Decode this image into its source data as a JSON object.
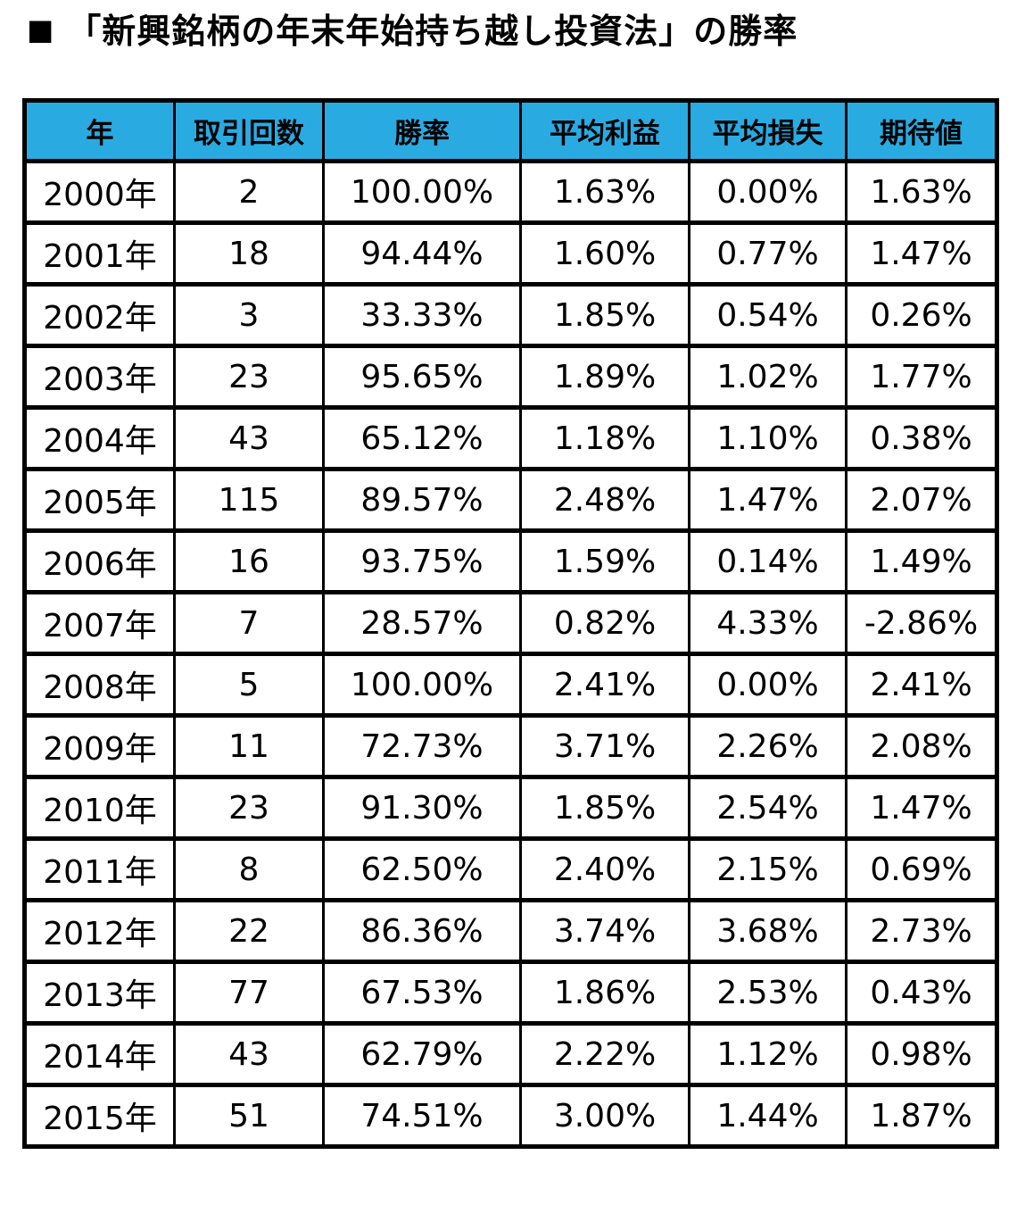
{
  "page": {
    "title_marker": "■",
    "title_text": "「新興銘柄の年末年始持ち越し投資法」の勝率"
  },
  "colors": {
    "header_bg": "#29ABE2",
    "border": "#000000",
    "text": "#000000",
    "background": "#FFFFFF"
  },
  "chart_data": {
    "type": "table",
    "title": "「新興銘柄の年末年始持ち越し投資法」の勝率",
    "columns": [
      "年",
      "取引回数",
      "勝率",
      "平均利益",
      "平均損失",
      "期待値"
    ],
    "rows": [
      [
        "2000年",
        "2",
        "100.00%",
        "1.63%",
        "0.00%",
        "1.63%"
      ],
      [
        "2001年",
        "18",
        "94.44%",
        "1.60%",
        "0.77%",
        "1.47%"
      ],
      [
        "2002年",
        "3",
        "33.33%",
        "1.85%",
        "0.54%",
        "0.26%"
      ],
      [
        "2003年",
        "23",
        "95.65%",
        "1.89%",
        "1.02%",
        "1.77%"
      ],
      [
        "2004年",
        "43",
        "65.12%",
        "1.18%",
        "1.10%",
        "0.38%"
      ],
      [
        "2005年",
        "115",
        "89.57%",
        "2.48%",
        "1.47%",
        "2.07%"
      ],
      [
        "2006年",
        "16",
        "93.75%",
        "1.59%",
        "0.14%",
        "1.49%"
      ],
      [
        "2007年",
        "7",
        "28.57%",
        "0.82%",
        "4.33%",
        "-2.86%"
      ],
      [
        "2008年",
        "5",
        "100.00%",
        "2.41%",
        "0.00%",
        "2.41%"
      ],
      [
        "2009年",
        "11",
        "72.73%",
        "3.71%",
        "2.26%",
        "2.08%"
      ],
      [
        "2010年",
        "23",
        "91.30%",
        "1.85%",
        "2.54%",
        "1.47%"
      ],
      [
        "2011年",
        "8",
        "62.50%",
        "2.40%",
        "2.15%",
        "0.69%"
      ],
      [
        "2012年",
        "22",
        "86.36%",
        "3.74%",
        "3.68%",
        "2.73%"
      ],
      [
        "2013年",
        "77",
        "67.53%",
        "1.86%",
        "2.53%",
        "0.43%"
      ],
      [
        "2014年",
        "43",
        "62.79%",
        "2.22%",
        "1.12%",
        "0.98%"
      ],
      [
        "2015年",
        "51",
        "74.51%",
        "3.00%",
        "1.44%",
        "1.87%"
      ]
    ]
  }
}
